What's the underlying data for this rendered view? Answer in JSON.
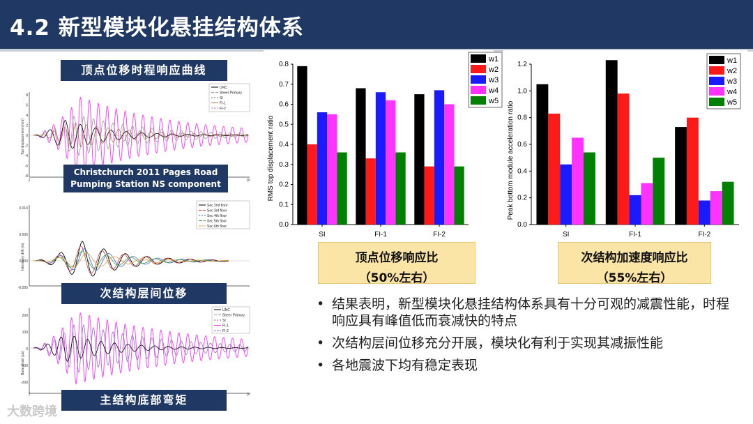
{
  "title": "4.2 新型模块化悬挂结构体系",
  "left_panels": {
    "top_label": "顶点位移时程响应曲线",
    "quake_label_line1": "Christchurch 2011 Pages Road",
    "quake_label_line2": "Pumping Station NS component",
    "mid_label": "次结构层间位移",
    "bottom_label": "主结构底部弯矩",
    "plot1": {
      "ylabel": "Top displacement (mm)",
      "legend": [
        "UNC",
        "Sheer Primary",
        "SI",
        "FI-1",
        "FI-2"
      ],
      "yticks": [
        "8",
        "6",
        "4",
        "2",
        "0",
        "-2",
        "-4",
        "-6",
        "-8"
      ],
      "xticks": [
        "2",
        "10"
      ]
    },
    "plot2": {
      "ylabel": "Interstory drift (m)",
      "legend": [
        "Sec 2nd floor",
        "Sec 3rd floor",
        "Sec 4th floor",
        "Sec 5th floor",
        "Sec 6th floor"
      ],
      "yticks": [
        "0.010",
        "0.005",
        "0.000",
        "-0.005"
      ]
    },
    "plot3": {
      "ylabel": "Base strain (με)",
      "legend": [
        "UNC",
        "Sheer Primary",
        "SI",
        "FI-1",
        "FI-2"
      ],
      "yticks": [
        "200",
        "100",
        "0",
        "-100",
        "-200"
      ],
      "xticks": [
        "2",
        "10"
      ]
    }
  },
  "series_colors": {
    "w1": "#000000",
    "w2": "#ff1a1a",
    "w3": "#1a1aff",
    "w4": "#ff33ff",
    "w5": "#008000"
  },
  "chart_data": [
    {
      "type": "bar",
      "categories": [
        "SI",
        "FI-1",
        "FI-2"
      ],
      "series": [
        {
          "name": "w1",
          "values": [
            0.79,
            0.68,
            0.65
          ]
        },
        {
          "name": "w2",
          "values": [
            0.4,
            0.33,
            0.29
          ]
        },
        {
          "name": "w3",
          "values": [
            0.56,
            0.66,
            0.67
          ]
        },
        {
          "name": "w4",
          "values": [
            0.55,
            0.62,
            0.6
          ]
        },
        {
          "name": "w5",
          "values": [
            0.36,
            0.36,
            0.29
          ]
        }
      ],
      "title": "",
      "xlabel": "",
      "ylabel": "RMS top displacement ratio",
      "ylim": [
        0,
        0.8
      ],
      "yticks": [
        "0.0",
        "0.1",
        "0.2",
        "0.3",
        "0.4",
        "0.5",
        "0.6",
        "0.7",
        "0.8"
      ],
      "legend": "top-right",
      "caption_line1": "顶点位移响应比",
      "caption_line2": "（50%左右）"
    },
    {
      "type": "bar",
      "categories": [
        "SI",
        "FI-1",
        "FI-2"
      ],
      "series": [
        {
          "name": "w1",
          "values": [
            1.05,
            1.23,
            0.73
          ]
        },
        {
          "name": "w2",
          "values": [
            0.83,
            0.98,
            0.8
          ]
        },
        {
          "name": "w3",
          "values": [
            0.45,
            0.22,
            0.18
          ]
        },
        {
          "name": "w4",
          "values": [
            0.65,
            0.31,
            0.25
          ]
        },
        {
          "name": "w5",
          "values": [
            0.54,
            0.5,
            0.32
          ]
        }
      ],
      "title": "",
      "xlabel": "",
      "ylabel": "Peak bottom module acceleration ratio",
      "ylim": [
        0,
        1.2
      ],
      "yticks": [
        "0.0",
        "0.2",
        "0.4",
        "0.6",
        "0.8",
        "1.0",
        "1.2"
      ],
      "legend": "top-right",
      "caption_line1": "次结构加速度响应比",
      "caption_line2": "（55%左右）"
    }
  ],
  "bullets": [
    "结果表明，新型模块化悬挂结构体系具有十分可观的减震性能，时程响应具有峰值低而衰减快的特点",
    "次结构层间位移充分开展，模块化有利于实现其减振性能",
    "各地震波下均有稳定表现"
  ],
  "bullet_symbol": "•",
  "watermark": "大数跨境"
}
